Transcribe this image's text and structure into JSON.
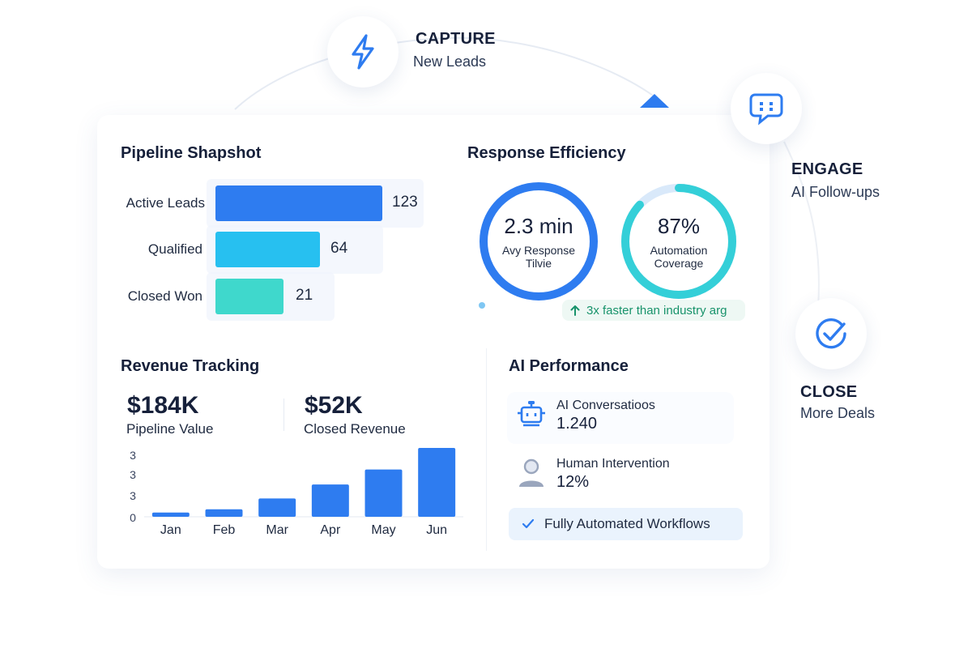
{
  "flow": {
    "capture": {
      "title": "CAPTURE",
      "subtitle": "New Leads",
      "icon": "lightning-bolt-icon"
    },
    "engage": {
      "title": "ENGAGE",
      "subtitle": "AI Follow-ups",
      "icon": "chat-bubble-icon"
    },
    "close": {
      "title": "CLOSE",
      "subtitle": "More Deals",
      "icon": "check-circle-icon"
    }
  },
  "pipeline": {
    "title": "Pipeline Shapshot",
    "rows": [
      {
        "label": "Active Leads",
        "value": "123",
        "color": "#2e7cf0"
      },
      {
        "label": "Qualified",
        "value": "64",
        "color": "#27c0f0"
      },
      {
        "label": "Closed Won",
        "value": "21",
        "color": "#3fd8cc"
      }
    ]
  },
  "response": {
    "title": "Response Efficiency",
    "ring1": {
      "value": "2.3 min",
      "label_line1": "Avy Response",
      "label_line2": "Tilvie",
      "color": "#2e7cf0"
    },
    "ring2": {
      "value": "87%",
      "label_line1": "Automation",
      "label_line2": "Coverage",
      "fraction": 0.87,
      "color": "#34cfd8",
      "track": "#d9e9fa"
    },
    "badge": {
      "text": "3x faster than industry arg",
      "icon": "arrow-up-icon"
    }
  },
  "revenue": {
    "title": "Revenue Tracking",
    "pipeline_value": "$184K",
    "pipeline_label": "Pipeline Value",
    "closed_value": "$52K",
    "closed_label": "Closed Revenue"
  },
  "chart_data": {
    "type": "bar",
    "categories": [
      "Jan",
      "Feb",
      "Mar",
      "Apr",
      "May",
      "Jun"
    ],
    "values": [
      0.2,
      0.35,
      0.85,
      1.5,
      2.2,
      3.2
    ],
    "ytick_labels": [
      "3",
      "3",
      "3",
      "0"
    ],
    "ylim": [
      0,
      3.2
    ],
    "color": "#2e7cf0",
    "grid": false
  },
  "ai_performance": {
    "title": "AI Performance",
    "conversations": {
      "label": "AI Conversatioos",
      "value": "1.240",
      "icon": "robot-icon"
    },
    "intervention": {
      "label": "Human Intervention",
      "value": "12%",
      "icon": "person-icon"
    },
    "badge": {
      "text": "Fully Automated Workflows",
      "icon": "check-icon"
    }
  },
  "colors": {
    "accent": "#2e7cf0",
    "green": "#18936b"
  }
}
